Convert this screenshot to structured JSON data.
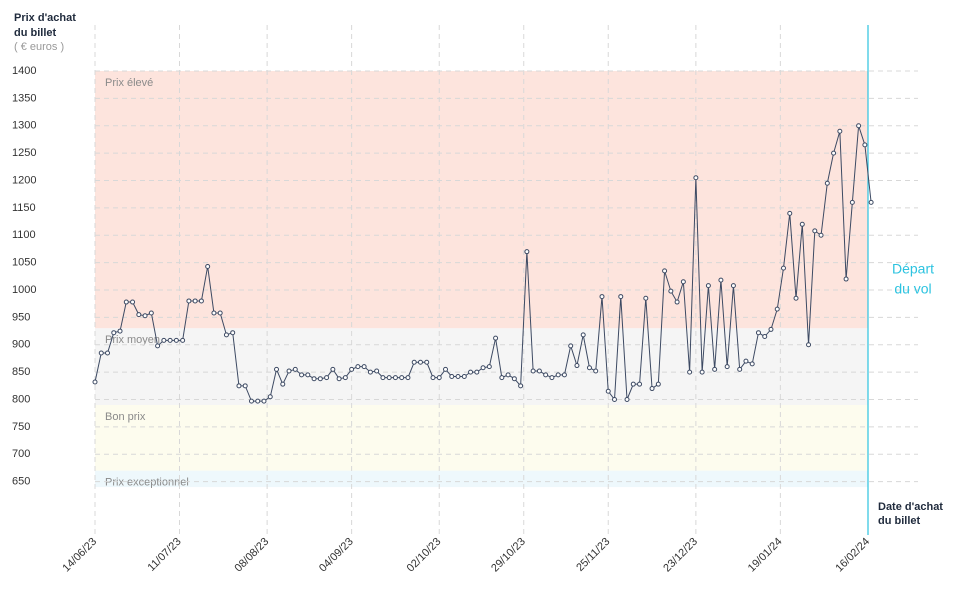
{
  "chart_data": {
    "type": "line",
    "y_title": [
      "Prix d'achat",
      "du billet"
    ],
    "y_unit": "( € euros )",
    "x_title": [
      "Date d'achat",
      "du billet"
    ],
    "ylim": [
      600,
      1400
    ],
    "yticks": [
      650,
      700,
      750,
      800,
      850,
      900,
      950,
      1000,
      1050,
      1100,
      1150,
      1200,
      1250,
      1300,
      1350,
      1400
    ],
    "xlim": [
      "14/06/23",
      "16/02/24"
    ],
    "xticks": [
      "14/06/23",
      "11/07/23",
      "08/08/23",
      "04/09/23",
      "02/10/23",
      "29/10/23",
      "25/11/23",
      "23/12/23",
      "19/01/24",
      "16/02/24"
    ],
    "grid": true,
    "bands": [
      {
        "label": "Prix élevé",
        "from": 930,
        "to": 1400,
        "color": "#fde4dd"
      },
      {
        "label": "Prix moyen",
        "from": 790,
        "to": 930,
        "color": "#f5f5f5"
      },
      {
        "label": "Bon prix",
        "from": 670,
        "to": 790,
        "color": "#fdfcee"
      },
      {
        "label": "Prix exceptionnel",
        "from": 640,
        "to": 670,
        "color": "#eef8fc"
      }
    ],
    "marker": {
      "x": "16/02/24",
      "label": [
        "Départ",
        "du vol"
      ],
      "color": "#2cc3e0"
    },
    "series": [
      {
        "name": "Prix",
        "color": "#3d4a63",
        "x": [
          "14/06/23",
          "16/06/23",
          "18/06/23",
          "20/06/23",
          "22/06/23",
          "24/06/23",
          "26/06/23",
          "28/06/23",
          "30/06/23",
          "02/07/23",
          "04/07/23",
          "06/07/23",
          "08/07/23",
          "10/07/23",
          "12/07/23",
          "14/07/23",
          "16/07/23",
          "18/07/23",
          "20/07/23",
          "22/07/23",
          "24/07/23",
          "26/07/23",
          "28/07/23",
          "30/07/23",
          "01/08/23",
          "03/08/23",
          "05/08/23",
          "07/08/23",
          "09/08/23",
          "11/08/23",
          "13/08/23",
          "15/08/23",
          "17/08/23",
          "19/08/23",
          "21/08/23",
          "23/08/23",
          "25/08/23",
          "27/08/23",
          "29/08/23",
          "31/08/23",
          "02/09/23",
          "04/09/23",
          "06/09/23",
          "08/09/23",
          "10/09/23",
          "12/09/23",
          "14/09/23",
          "16/09/23",
          "18/09/23",
          "20/09/23",
          "22/09/23",
          "24/09/23",
          "26/09/23",
          "28/09/23",
          "30/09/23",
          "02/10/23",
          "04/10/23",
          "06/10/23",
          "08/10/23",
          "10/10/23",
          "12/10/23",
          "14/10/23",
          "16/10/23",
          "18/10/23",
          "20/10/23",
          "22/10/23",
          "24/10/23",
          "26/10/23",
          "28/10/23",
          "30/10/23",
          "01/11/23",
          "03/11/23",
          "05/11/23",
          "07/11/23",
          "09/11/23",
          "11/11/23",
          "13/11/23",
          "15/11/23",
          "17/11/23",
          "19/11/23",
          "21/11/23",
          "23/11/23",
          "25/11/23",
          "27/11/23",
          "29/11/23",
          "01/12/23",
          "03/12/23",
          "05/12/23",
          "07/12/23",
          "09/12/23",
          "11/12/23",
          "13/12/23",
          "15/12/23",
          "17/12/23",
          "19/12/23",
          "21/12/23",
          "23/12/23",
          "25/12/23",
          "27/12/23",
          "29/12/23",
          "31/12/23",
          "02/01/24",
          "04/01/24",
          "06/01/24",
          "08/01/24",
          "10/01/24",
          "12/01/24",
          "14/01/24",
          "16/01/24",
          "18/01/24",
          "20/01/24",
          "22/01/24",
          "24/01/24",
          "26/01/24",
          "28/01/24",
          "30/01/24",
          "01/02/24",
          "03/02/24",
          "05/02/24",
          "07/02/24",
          "09/02/24",
          "11/02/24",
          "13/02/24",
          "15/02/24",
          "17/02/24"
        ],
        "values": [
          832,
          885,
          885,
          922,
          925,
          978,
          978,
          955,
          953,
          958,
          898,
          908,
          908,
          908,
          908,
          980,
          980,
          980,
          1043,
          958,
          958,
          918,
          922,
          825,
          825,
          797,
          797,
          797,
          805,
          855,
          828,
          852,
          855,
          845,
          845,
          838,
          838,
          840,
          855,
          838,
          840,
          855,
          860,
          860,
          850,
          852,
          840,
          840,
          840,
          840,
          840,
          868,
          868,
          868,
          840,
          840,
          855,
          842,
          842,
          842,
          850,
          850,
          858,
          860,
          912,
          840,
          845,
          838,
          825,
          1070,
          852,
          852,
          845,
          840,
          845,
          845,
          898,
          862,
          918,
          858,
          852,
          988,
          815,
          800,
          988,
          800,
          828,
          828,
          985,
          820,
          828,
          1035,
          998,
          978,
          1015,
          850,
          1205,
          850,
          1008,
          855,
          1018,
          860,
          1008,
          855,
          870,
          865,
          922,
          915,
          928,
          965,
          1040,
          1140,
          985,
          1120,
          900,
          1108,
          1100,
          1195,
          1250,
          1290,
          1020,
          1160,
          1300,
          1265,
          1160
        ]
      }
    ]
  }
}
